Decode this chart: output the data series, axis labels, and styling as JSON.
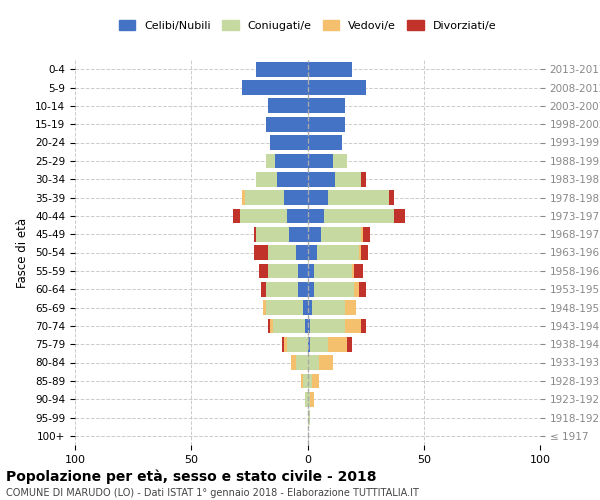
{
  "age_groups": [
    "100+",
    "95-99",
    "90-94",
    "85-89",
    "80-84",
    "75-79",
    "70-74",
    "65-69",
    "60-64",
    "55-59",
    "50-54",
    "45-49",
    "40-44",
    "35-39",
    "30-34",
    "25-29",
    "20-24",
    "15-19",
    "10-14",
    "5-9",
    "0-4"
  ],
  "birth_years": [
    "≤ 1917",
    "1918-1922",
    "1923-1927",
    "1928-1932",
    "1933-1937",
    "1938-1942",
    "1943-1947",
    "1948-1952",
    "1953-1957",
    "1958-1962",
    "1963-1967",
    "1968-1972",
    "1973-1977",
    "1978-1982",
    "1983-1987",
    "1988-1992",
    "1993-1997",
    "1998-2002",
    "2003-2007",
    "2008-2012",
    "2013-2017"
  ],
  "male": {
    "celibi": [
      0,
      0,
      0,
      0,
      0,
      0,
      1,
      2,
      4,
      4,
      5,
      8,
      9,
      10,
      13,
      14,
      16,
      18,
      17,
      28,
      22
    ],
    "coniugati": [
      0,
      0,
      1,
      2,
      5,
      9,
      14,
      16,
      14,
      13,
      12,
      14,
      20,
      17,
      9,
      4,
      0,
      0,
      0,
      0,
      0
    ],
    "vedovi": [
      0,
      0,
      0,
      1,
      2,
      1,
      1,
      1,
      0,
      0,
      0,
      0,
      0,
      1,
      0,
      0,
      0,
      0,
      0,
      0,
      0
    ],
    "divorziati": [
      0,
      0,
      0,
      0,
      0,
      1,
      1,
      0,
      2,
      4,
      6,
      1,
      3,
      0,
      0,
      0,
      0,
      0,
      0,
      0,
      0
    ]
  },
  "female": {
    "nubili": [
      0,
      0,
      0,
      0,
      0,
      1,
      1,
      2,
      3,
      3,
      4,
      6,
      7,
      9,
      12,
      11,
      15,
      16,
      16,
      25,
      19
    ],
    "coniugate": [
      0,
      1,
      1,
      2,
      5,
      8,
      15,
      14,
      17,
      16,
      18,
      17,
      30,
      26,
      11,
      6,
      0,
      0,
      0,
      0,
      0
    ],
    "vedove": [
      0,
      0,
      2,
      3,
      6,
      8,
      7,
      5,
      2,
      1,
      1,
      1,
      0,
      0,
      0,
      0,
      0,
      0,
      0,
      0,
      0
    ],
    "divorziate": [
      0,
      0,
      0,
      0,
      0,
      2,
      2,
      0,
      3,
      4,
      3,
      3,
      5,
      2,
      2,
      0,
      0,
      0,
      0,
      0,
      0
    ]
  },
  "colors": {
    "celibi": "#4472c4",
    "coniugati": "#c5d9a0",
    "vedovi": "#f5c06d",
    "divorziati": "#c0322a"
  },
  "title": "Popolazione per età, sesso e stato civile - 2018",
  "subtitle": "COMUNE DI MARUDO (LO) - Dati ISTAT 1° gennaio 2018 - Elaborazione TUTTITALIA.IT",
  "ylabel_left": "Fasce di età",
  "xlim": 100,
  "legend_labels": [
    "Celibi/Nubili",
    "Coniugati/e",
    "Vedovi/e",
    "Divorziati/e"
  ],
  "background_color": "#ffffff",
  "bar_height": 0.8
}
